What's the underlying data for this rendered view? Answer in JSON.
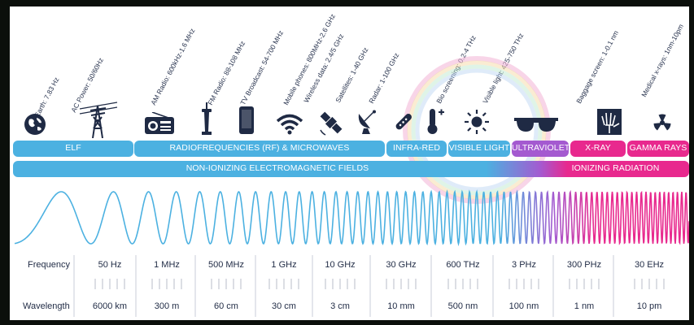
{
  "applications": [
    {
      "label": "Earth: 7.83 Hz",
      "icon": "globe-icon"
    },
    {
      "label": "AC Power: 50/60Hz",
      "icon": "power-tower-icon"
    },
    {
      "label": "AM Radio: 600kHz-1.6 MHz",
      "icon": "radio-icon"
    },
    {
      "label": "FM Radio: 88-108 MHz",
      "icon": "radio-tower-icon"
    },
    {
      "label": "TV Broadcast: 54-700 MHz",
      "icon": "tv-tower-icon"
    },
    {
      "label": "Mobile phones: 800MHz-2.6 GHz",
      "icon": "mobile-phone-icon"
    },
    {
      "label": "Wireless data: 2.4/5 GHz",
      "icon": "wifi-icon"
    },
    {
      "label": "Satellites: 1-40 GHz",
      "icon": "satellite-icon"
    },
    {
      "label": "Radar: 1-100 GHz",
      "icon": "radar-dish-icon"
    },
    {
      "label": "Bio screening: 0.2-4 THz",
      "icon": "thermometer-icon"
    },
    {
      "label": "Visible light: 425-750 THz",
      "icon": "sun-icon"
    },
    {
      "label": "Baggage screen: 1-0.1 nm",
      "icon": "xray-hand-icon"
    },
    {
      "label": "Medical x-rays: 1nm-10pm",
      "icon": "radiation-icon"
    }
  ],
  "bands": {
    "elf": "ELF",
    "rf": "RADIOFREQUENCIES (RF) & MICROWAVES",
    "ir": "INFRA-RED",
    "visible": "VISIBLE LIGHT",
    "uv": "ULTRAVIOLET",
    "xray": "X-RAY",
    "gamma": "GAMMA RAYS",
    "non_ionizing": "NON-IONIZING ELECTROMAGNETIC FIELDS",
    "ionizing": "IONIZING RADIATION"
  },
  "scale": {
    "frequency_label": "Frequency",
    "wavelength_label": "Wavelength",
    "frequencies": [
      "50 Hz",
      "1 MHz",
      "500 MHz",
      "1 GHz",
      "10 GHz",
      "30 GHz",
      "600 THz",
      "3 PHz",
      "300 PHz",
      "30 EHz"
    ],
    "wavelengths": [
      "6000 km",
      "300 m",
      "60 cm",
      "30 cm",
      "3 cm",
      "10 mm",
      "500 nm",
      "100 nm",
      "1 nm",
      "10 pm"
    ]
  },
  "colors": {
    "blue": "#4cb1e1",
    "pink": "#e8298e",
    "purple": "#a45ad0",
    "text": "#1f2a44",
    "icon": "#1f2a44"
  }
}
